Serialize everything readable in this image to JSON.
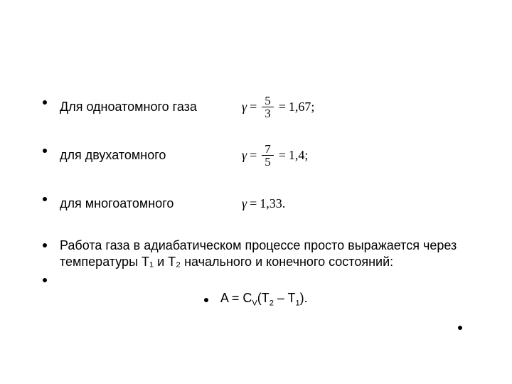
{
  "slide": {
    "background_color": "#ffffff",
    "text_color": "#000000",
    "font_family": "Arial",
    "font_size_pt": 18,
    "math_font_family": "Times New Roman",
    "bullets": [
      {
        "text": "Для одноатомного газа",
        "formula": {
          "gamma_numer": "5",
          "gamma_denom": "3",
          "approx": "1,67",
          "trail": ";"
        }
      },
      {
        "text": "для двухатомного",
        "formula": {
          "gamma_numer": "7",
          "gamma_denom": "5",
          "approx": "1,4",
          "trail": ";"
        }
      },
      {
        "text": "для многоатомного",
        "formula_simple": {
          "value": "1,33",
          "trail": "."
        }
      }
    ],
    "paragraph": "Работа газа в адиабатическом процессе просто выражается через температуры T₁ и T₂ начального и конечного состояний:",
    "equation_prefix": "A = C",
    "equation_sub": "V",
    "equation_open": "(T",
    "equation_sub2": "2",
    "equation_mid": " – T",
    "equation_sub1": "1",
    "equation_close": ")."
  }
}
